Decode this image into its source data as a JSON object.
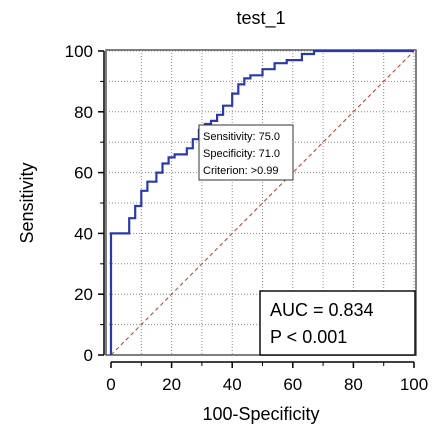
{
  "chart_data": {
    "type": "line",
    "title": "test_1",
    "xlabel": "100-Specificity",
    "ylabel": "Sensitivity",
    "xlim": [
      0,
      100
    ],
    "ylim": [
      0,
      100
    ],
    "x_ticks": [
      "0",
      "20",
      "40",
      "60",
      "80",
      "100"
    ],
    "y_ticks": [
      "0",
      "20",
      "40",
      "60",
      "80",
      "100"
    ],
    "grid": true,
    "series": [
      {
        "color": "#2b3aa8",
        "x": [
          0,
          0,
          6,
          6,
          8,
          8,
          10,
          10,
          12,
          12,
          15,
          15,
          17,
          17,
          19,
          19,
          21,
          21,
          25,
          25,
          27,
          27,
          29,
          29,
          31,
          31,
          33,
          33,
          35,
          35,
          37,
          37,
          40,
          40,
          42,
          42,
          44,
          44,
          46,
          46,
          50,
          50,
          54,
          54,
          58,
          58,
          63,
          63,
          67,
          67,
          100
        ],
        "y": [
          0,
          40,
          40,
          45,
          45,
          49,
          49,
          54,
          54,
          57,
          57,
          60,
          60,
          63,
          63,
          65,
          65,
          66,
          66,
          68,
          68,
          71,
          71,
          74,
          74,
          76,
          76,
          77,
          77,
          79,
          79,
          82,
          82,
          86,
          86,
          89,
          89,
          91,
          91,
          92,
          92,
          94,
          94,
          96,
          96,
          97,
          97,
          99,
          99,
          100,
          100
        ]
      }
    ],
    "reference_line": {
      "x": [
        0,
        100
      ],
      "y": [
        0,
        100
      ],
      "color": "#c0392b",
      "style": "dashed"
    },
    "criterion_point": {
      "x": 29,
      "y": 75
    },
    "criterion_box": [
      "Sensitivity: 75.0",
      "Specificity: 71.0",
      "Criterion: >0.99"
    ],
    "stats_box": [
      "AUC = 0.834",
      "P < 0.001"
    ]
  }
}
